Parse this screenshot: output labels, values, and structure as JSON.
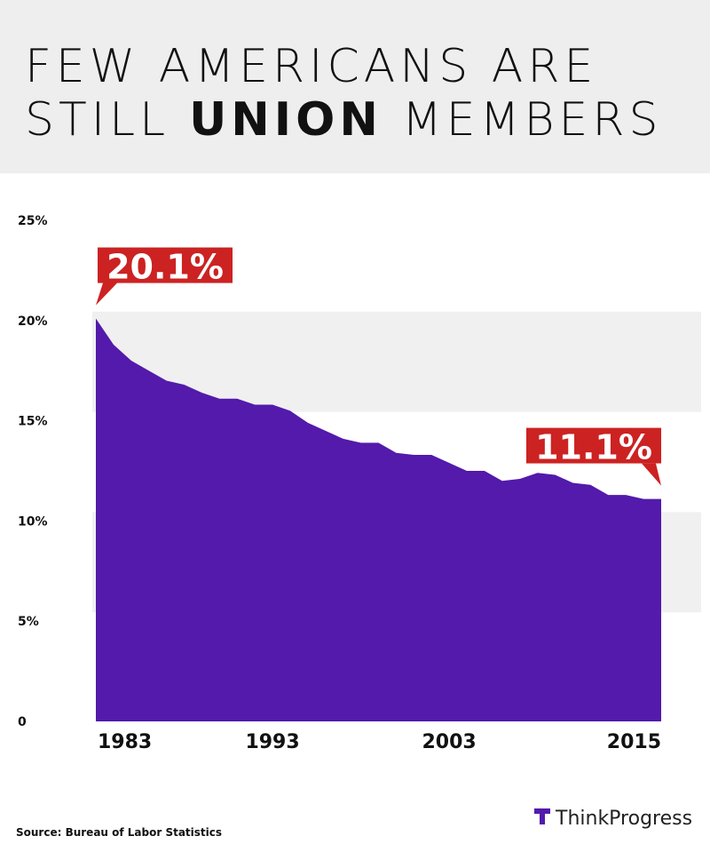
{
  "chart_data": {
    "type": "area",
    "title_parts": [
      "FEW AMERICANS ARE",
      "STILL",
      "UNION",
      "MEMBERS"
    ],
    "x": [
      1983,
      1984,
      1985,
      1986,
      1987,
      1988,
      1989,
      1990,
      1991,
      1992,
      1993,
      1994,
      1995,
      1996,
      1997,
      1998,
      1999,
      2000,
      2001,
      2002,
      2003,
      2004,
      2005,
      2006,
      2007,
      2008,
      2009,
      2010,
      2011,
      2012,
      2013,
      2014,
      2015
    ],
    "values": [
      20.1,
      18.8,
      18.0,
      17.5,
      17.0,
      16.8,
      16.4,
      16.1,
      16.1,
      15.8,
      15.8,
      15.5,
      14.9,
      14.5,
      14.1,
      13.9,
      13.9,
      13.4,
      13.3,
      13.3,
      12.9,
      12.5,
      12.5,
      12.0,
      12.1,
      12.4,
      12.3,
      11.9,
      11.8,
      11.3,
      11.3,
      11.1,
      11.1
    ],
    "value_labels": [
      "20.1%",
      null,
      null,
      null,
      null,
      null,
      null,
      null,
      null,
      null,
      null,
      null,
      null,
      null,
      null,
      null,
      null,
      null,
      null,
      null,
      null,
      null,
      null,
      null,
      null,
      null,
      null,
      null,
      null,
      null,
      null,
      null,
      "11.1%"
    ],
    "color": "#531aab",
    "label_color": "#cc2222",
    "xlim": [
      1983,
      2015
    ],
    "xticks": [
      1983,
      1993,
      2003,
      2015
    ],
    "ylim": [
      0,
      25
    ],
    "yticks": [
      0,
      {
        "value": 5,
        "label": "5%"
      },
      {
        "value": 10,
        "label": "10%"
      },
      {
        "value": 15,
        "label": "15%"
      },
      {
        "value": 20,
        "label": "20%"
      },
      {
        "value": 25,
        "label": "25%"
      }
    ],
    "grid": "bands",
    "source": "Source: Bureau of Labor Statistics",
    "brand": "ThinkProgress"
  }
}
